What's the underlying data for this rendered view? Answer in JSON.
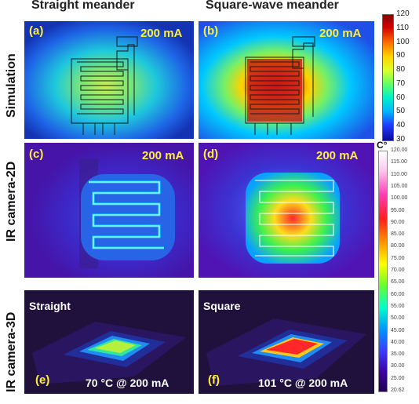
{
  "columns": {
    "left": "Straight meander",
    "right": "Square-wave meander"
  },
  "rows": {
    "sim": "Simulation",
    "ir2d": "IR camera-2D",
    "ir3d": "IR camera-3D"
  },
  "panels": {
    "a": {
      "label": "(a)",
      "current": "200 mA"
    },
    "b": {
      "label": "(b)",
      "current": "200 mA"
    },
    "c": {
      "label": "(c)",
      "current": "200 mA"
    },
    "d": {
      "label": "(d)",
      "current": "200 mA"
    },
    "e": {
      "label": "(e)",
      "name": "Straight",
      "reading": "70 °C @ 200 mA"
    },
    "f": {
      "label": "(f)",
      "name": "Square",
      "reading": "101 °C @ 200 mA"
    }
  },
  "colorbar_sim": {
    "ticks": [
      "120",
      "110",
      "100",
      "90",
      "80",
      "70",
      "60",
      "50",
      "40",
      "30"
    ],
    "colors": [
      "#0a0a9a",
      "#1e3cff",
      "#00b4ff",
      "#00f0c8",
      "#64ff64",
      "#dcff28",
      "#ffd200",
      "#ff6e00",
      "#d20000",
      "#8c0000"
    ]
  },
  "colorbar_ir": {
    "unit": "C°",
    "ticks": [
      "120.00",
      "115.00",
      "110.00",
      "105.00",
      "100.00",
      "95.00",
      "90.00",
      "85.00",
      "80.00",
      "75.00",
      "70.00",
      "65.00",
      "60.00",
      "55.00",
      "50.00",
      "45.00",
      "40.00",
      "35.00",
      "30.00",
      "25.00",
      "20.62"
    ],
    "colors": [
      "#200050",
      "#3c00a0",
      "#3c3cff",
      "#0096ff",
      "#00ffc8",
      "#64ff32",
      "#ffff00",
      "#ff9600",
      "#ff1e1e",
      "#ff3cb4",
      "#ffc8f0",
      "#ffffff"
    ]
  }
}
